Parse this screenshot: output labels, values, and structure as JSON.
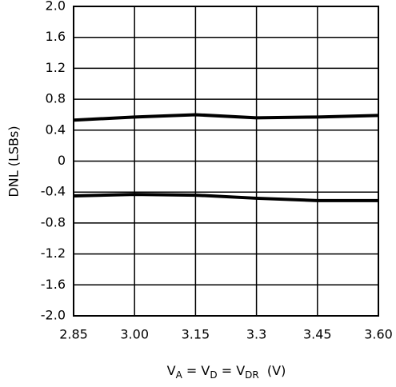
{
  "chart_data": {
    "type": "line",
    "ylabel": "DNL (LSBs)",
    "xlabel": [
      "V",
      "A",
      " = V",
      "D",
      " = V",
      "DR",
      "  (V)"
    ],
    "x": [
      2.85,
      3.0,
      3.15,
      3.3,
      3.45,
      3.6
    ],
    "series": [
      {
        "color": "#000000",
        "values": [
          0.53,
          0.57,
          0.6,
          0.56,
          0.57,
          0.59
        ]
      },
      {
        "color": "#000000",
        "values": [
          -0.45,
          -0.43,
          -0.44,
          -0.48,
          -0.51,
          -0.51
        ]
      }
    ],
    "xlim": [
      2.85,
      3.6
    ],
    "xticks": [
      2.85,
      {
        "value": 3.0,
        "label": "3.00"
      },
      3.15,
      3.3,
      3.45,
      {
        "value": 3.6,
        "label": "3.60"
      }
    ],
    "ylim": [
      -2.0,
      2.0
    ],
    "yticks": [
      {
        "value": 2.0,
        "label": "2.0"
      },
      1.6,
      1.2,
      0.8,
      0.4,
      0,
      -0.4,
      -0.8,
      -1.2,
      -1.6,
      {
        "value": -2.0,
        "label": "-2.0"
      }
    ],
    "grid": true
  }
}
